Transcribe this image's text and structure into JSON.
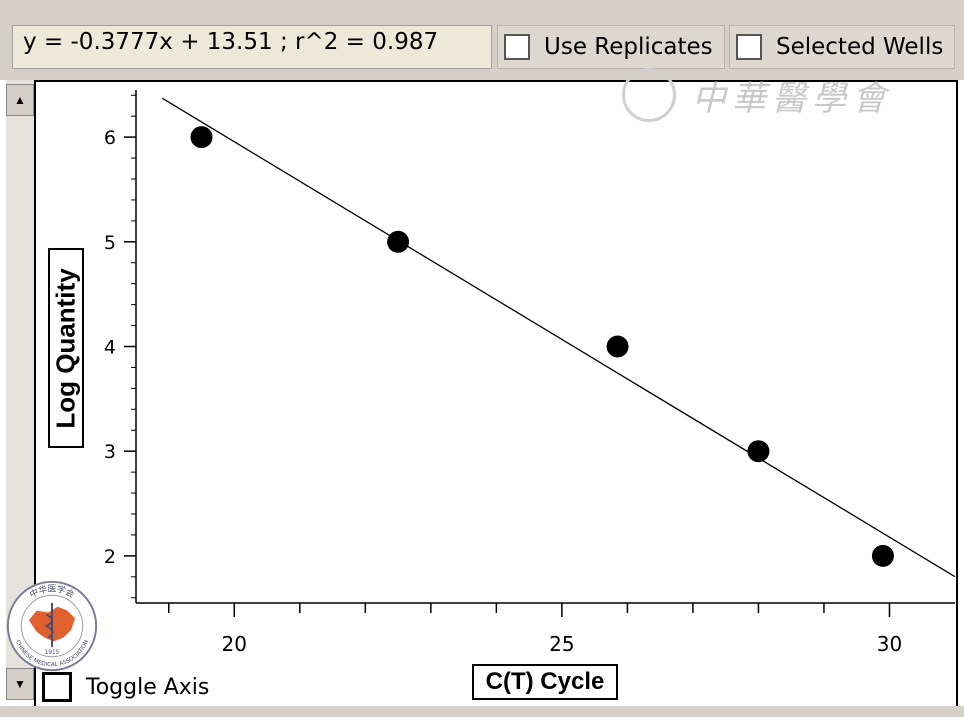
{
  "toolbar": {
    "equation": "y = -0.3777x + 13.51 ;  r^2 = 0.987",
    "use_replicates_label": "Use Replicates",
    "selected_wells_label": "Selected Wells"
  },
  "footer": {
    "toggle_axis_label": "Toggle Axis"
  },
  "watermark": {
    "text": "中華醫學會"
  },
  "logo": {
    "top_text": "中华医学会",
    "bottom_text": "CHINESE MEDICAL ASSOCIATION",
    "year": "1915",
    "color": "#e06030"
  },
  "chart_data": {
    "type": "scatter",
    "xlabel": "C(T) Cycle",
    "ylabel": "Log Quantity",
    "xlim": [
      18.5,
      31.0
    ],
    "ylim": [
      1.55,
      6.45
    ],
    "x_ticks": [
      20,
      25,
      30
    ],
    "x_minor_ticks": [
      19,
      20,
      21,
      22,
      23,
      24,
      25,
      26,
      27,
      28,
      29,
      30
    ],
    "y_ticks": [
      2,
      3,
      4,
      5,
      6
    ],
    "points": [
      {
        "x": 19.5,
        "y": 6
      },
      {
        "x": 22.5,
        "y": 5
      },
      {
        "x": 25.85,
        "y": 4
      },
      {
        "x": 28.0,
        "y": 3
      },
      {
        "x": 29.9,
        "y": 2
      }
    ],
    "fit": {
      "slope": -0.3777,
      "intercept": 13.51,
      "r2": 0.987,
      "x_range": [
        18.9,
        31.0
      ]
    },
    "grid": false,
    "colors": {
      "points": "#000000",
      "line": "#000000"
    }
  }
}
